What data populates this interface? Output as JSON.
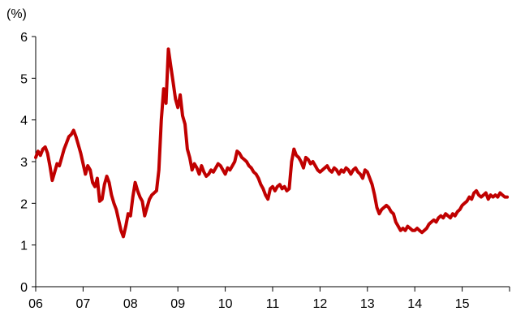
{
  "chart_data": {
    "type": "line",
    "title": "",
    "y_unit_label": "(%)",
    "x_tick_labels": [
      "06",
      "07",
      "08",
      "09",
      "10",
      "11",
      "12",
      "13",
      "14",
      "15"
    ],
    "x_tick_years": [
      2006,
      2007,
      2008,
      2009,
      2010,
      2011,
      2012,
      2013,
      2014,
      2015
    ],
    "xlim": [
      2006.0,
      2016.0
    ],
    "y_ticks": [
      0,
      1,
      2,
      3,
      4,
      5,
      6
    ],
    "ylim": [
      0,
      6
    ],
    "grid": false,
    "legend": "none",
    "series": [
      {
        "color": "#c00000",
        "x": [
          2006.0,
          2006.05,
          2006.1,
          2006.15,
          2006.2,
          2006.25,
          2006.3,
          2006.35,
          2006.4,
          2006.45,
          2006.5,
          2006.55,
          2006.6,
          2006.65,
          2006.7,
          2006.75,
          2006.8,
          2006.85,
          2006.9,
          2006.95,
          2007.0,
          2007.05,
          2007.1,
          2007.15,
          2007.2,
          2007.25,
          2007.3,
          2007.35,
          2007.4,
          2007.45,
          2007.5,
          2007.55,
          2007.6,
          2007.65,
          2007.7,
          2007.75,
          2007.8,
          2007.85,
          2007.9,
          2007.95,
          2008.0,
          2008.05,
          2008.1,
          2008.15,
          2008.2,
          2008.25,
          2008.3,
          2008.35,
          2008.4,
          2008.45,
          2008.5,
          2008.55,
          2008.6,
          2008.65,
          2008.7,
          2008.75,
          2008.8,
          2008.85,
          2008.9,
          2008.95,
          2009.0,
          2009.05,
          2009.1,
          2009.15,
          2009.2,
          2009.25,
          2009.3,
          2009.35,
          2009.4,
          2009.45,
          2009.5,
          2009.55,
          2009.6,
          2009.65,
          2009.7,
          2009.75,
          2009.8,
          2009.85,
          2009.9,
          2009.95,
          2010.0,
          2010.05,
          2010.1,
          2010.15,
          2010.2,
          2010.25,
          2010.3,
          2010.35,
          2010.4,
          2010.45,
          2010.5,
          2010.55,
          2010.6,
          2010.65,
          2010.7,
          2010.75,
          2010.8,
          2010.85,
          2010.9,
          2010.95,
          2011.0,
          2011.05,
          2011.1,
          2011.15,
          2011.2,
          2011.25,
          2011.3,
          2011.35,
          2011.4,
          2011.45,
          2011.5,
          2011.55,
          2011.6,
          2011.65,
          2011.7,
          2011.75,
          2011.8,
          2011.85,
          2011.9,
          2011.95,
          2012.0,
          2012.05,
          2012.1,
          2012.15,
          2012.2,
          2012.25,
          2012.3,
          2012.35,
          2012.4,
          2012.45,
          2012.5,
          2012.55,
          2012.6,
          2012.65,
          2012.7,
          2012.75,
          2012.8,
          2012.85,
          2012.9,
          2012.95,
          2013.0,
          2013.05,
          2013.1,
          2013.15,
          2013.2,
          2013.25,
          2013.3,
          2013.35,
          2013.4,
          2013.45,
          2013.5,
          2013.55,
          2013.6,
          2013.65,
          2013.7,
          2013.75,
          2013.8,
          2013.85,
          2013.9,
          2013.95,
          2014.0,
          2014.05,
          2014.1,
          2014.15,
          2014.2,
          2014.25,
          2014.3,
          2014.35,
          2014.4,
          2014.45,
          2014.5,
          2014.55,
          2014.6,
          2014.65,
          2014.7,
          2014.75,
          2014.8,
          2014.85,
          2014.9,
          2014.95,
          2015.0,
          2015.05,
          2015.1,
          2015.15,
          2015.2,
          2015.25,
          2015.3,
          2015.35,
          2015.4,
          2015.45,
          2015.5,
          2015.55,
          2015.6,
          2015.65,
          2015.7,
          2015.75,
          2015.8,
          2015.85,
          2015.9,
          2015.95
        ],
        "values": [
          3.1,
          3.25,
          3.15,
          3.3,
          3.35,
          3.2,
          2.9,
          2.55,
          2.75,
          2.95,
          2.9,
          3.1,
          3.3,
          3.45,
          3.6,
          3.65,
          3.75,
          3.6,
          3.4,
          3.2,
          2.95,
          2.7,
          2.9,
          2.8,
          2.5,
          2.4,
          2.6,
          2.05,
          2.1,
          2.45,
          2.65,
          2.5,
          2.2,
          2.0,
          1.85,
          1.6,
          1.35,
          1.2,
          1.45,
          1.75,
          1.7,
          2.15,
          2.5,
          2.3,
          2.15,
          2.05,
          1.7,
          1.9,
          2.1,
          2.2,
          2.25,
          2.3,
          2.8,
          4.0,
          4.75,
          4.4,
          5.7,
          5.3,
          4.9,
          4.5,
          4.3,
          4.6,
          4.1,
          3.9,
          3.3,
          3.1,
          2.8,
          2.95,
          2.85,
          2.7,
          2.9,
          2.75,
          2.65,
          2.7,
          2.8,
          2.75,
          2.85,
          2.95,
          2.9,
          2.8,
          2.7,
          2.85,
          2.8,
          2.9,
          3.0,
          3.25,
          3.2,
          3.1,
          3.05,
          3.0,
          2.9,
          2.85,
          2.75,
          2.7,
          2.6,
          2.45,
          2.35,
          2.2,
          2.1,
          2.35,
          2.4,
          2.3,
          2.4,
          2.45,
          2.35,
          2.4,
          2.3,
          2.35,
          3.0,
          3.3,
          3.15,
          3.1,
          3.0,
          2.85,
          3.1,
          3.05,
          2.95,
          3.0,
          2.9,
          2.8,
          2.75,
          2.8,
          2.85,
          2.9,
          2.8,
          2.75,
          2.85,
          2.8,
          2.7,
          2.8,
          2.75,
          2.85,
          2.8,
          2.7,
          2.8,
          2.85,
          2.75,
          2.7,
          2.6,
          2.8,
          2.75,
          2.6,
          2.45,
          2.2,
          1.9,
          1.75,
          1.85,
          1.9,
          1.95,
          1.9,
          1.8,
          1.75,
          1.55,
          1.45,
          1.35,
          1.4,
          1.35,
          1.45,
          1.4,
          1.35,
          1.35,
          1.4,
          1.35,
          1.3,
          1.35,
          1.4,
          1.5,
          1.55,
          1.6,
          1.55,
          1.65,
          1.7,
          1.65,
          1.75,
          1.7,
          1.65,
          1.75,
          1.7,
          1.8,
          1.85,
          1.95,
          2.0,
          2.05,
          2.15,
          2.1,
          2.25,
          2.3,
          2.2,
          2.15,
          2.2,
          2.25,
          2.1,
          2.2,
          2.15,
          2.2,
          2.15,
          2.25,
          2.2,
          2.15,
          2.15
        ]
      }
    ]
  }
}
